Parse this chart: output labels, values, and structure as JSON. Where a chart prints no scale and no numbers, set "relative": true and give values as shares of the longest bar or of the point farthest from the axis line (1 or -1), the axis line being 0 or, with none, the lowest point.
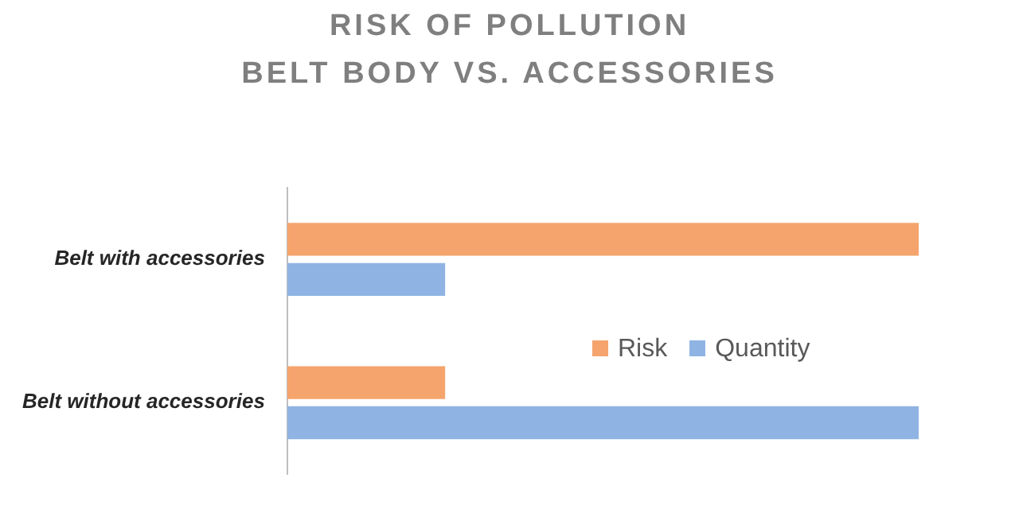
{
  "chart_data": {
    "type": "bar",
    "orientation": "horizontal",
    "relative": true,
    "title": "RISK OF POLLUTION",
    "subtitle": "BELT BODY VS. ACCESSORIES",
    "categories": [
      "Belt with accessories",
      "Belt without accessories"
    ],
    "series": [
      {
        "name": "Risk",
        "color": "#f4a46c",
        "values": [
          1,
          0.25
        ]
      },
      {
        "name": "Quantity",
        "color": "#8fb4e3",
        "values": [
          0.25,
          1
        ]
      }
    ],
    "legend": "right"
  }
}
